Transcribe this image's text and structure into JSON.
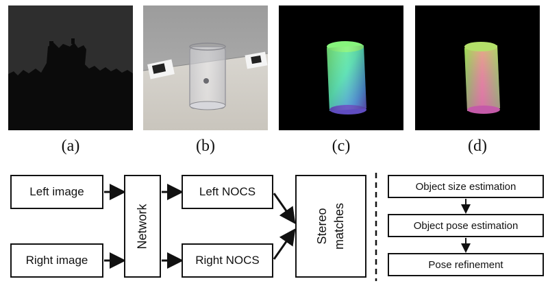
{
  "panels": [
    {
      "id": "a",
      "caption": "(a)",
      "content": "depth map"
    },
    {
      "id": "b",
      "caption": "(b)",
      "content": "RGB photo of glass"
    },
    {
      "id": "c",
      "caption": "(c)",
      "content": "predicted NOCS"
    },
    {
      "id": "d",
      "caption": "(d)",
      "content": "ground-truth NOCS"
    }
  ],
  "pipeline": {
    "left_image": "Left image",
    "right_image": "Right image",
    "network": "Network",
    "left_nocs": "Left NOCS",
    "right_nocs": "Right NOCS",
    "stereo_line1": "Stereo",
    "stereo_line2": "matches"
  },
  "post_steps": [
    "Object size estimation",
    "Object pose estimation",
    "Pose refinement"
  ],
  "colors": {
    "ink": "#111111",
    "depth_bg": "#2e2e2e",
    "depth_fg": "#0b0b0b",
    "nocs_bg": "#000000"
  }
}
